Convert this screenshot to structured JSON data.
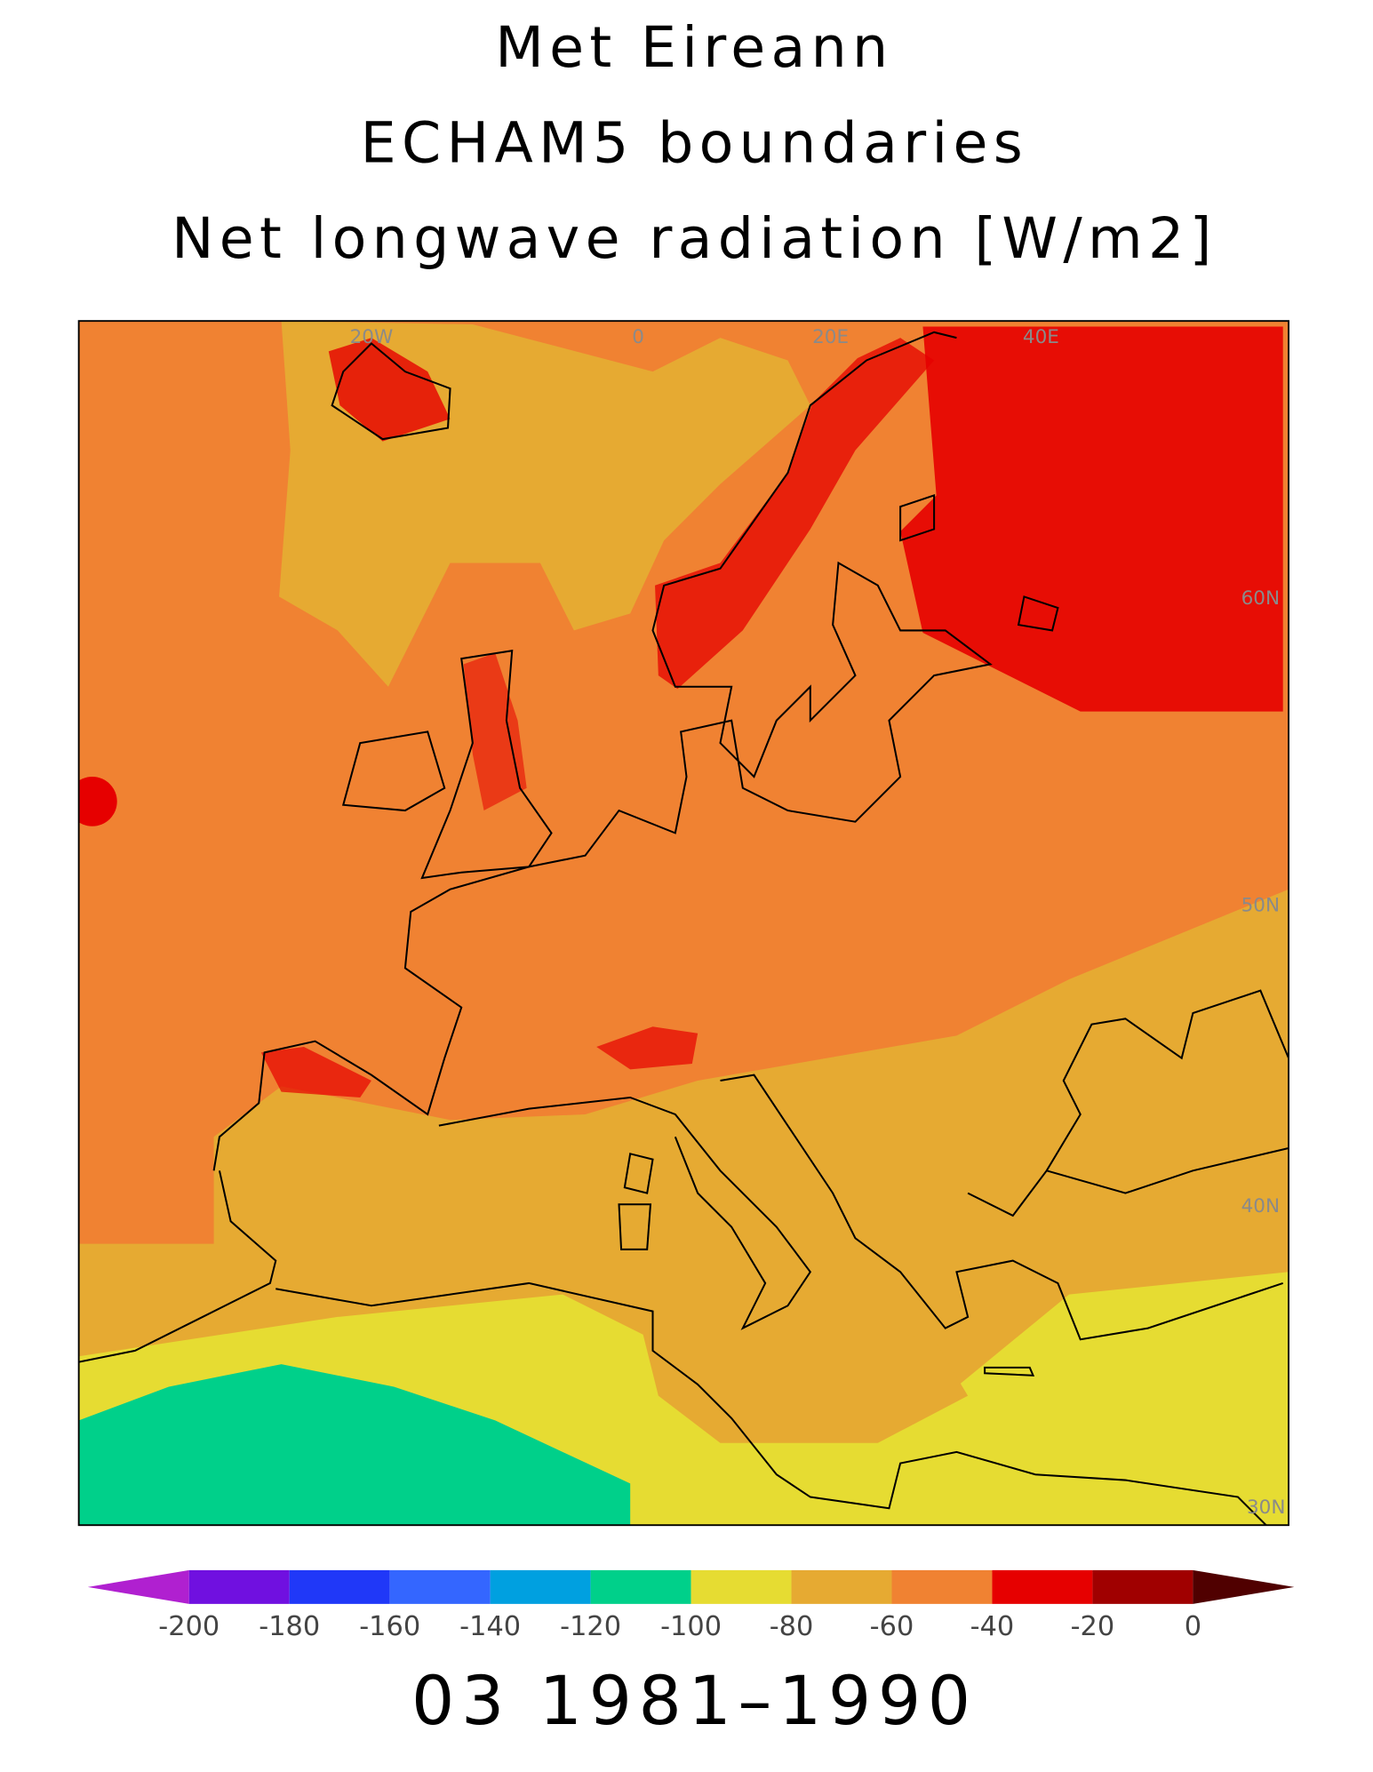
{
  "title": [
    "Met Eireann",
    "ECHAM5 boundaries",
    "Net longwave radiation [W/m2]"
  ],
  "map": {
    "grid_labels": [
      "20W",
      "0",
      "20E",
      "40E",
      "60N",
      "50N",
      "40N",
      "30N"
    ]
  },
  "colorbar": {
    "ticks": [
      -200,
      -180,
      -160,
      -140,
      -120,
      -100,
      -80,
      -60,
      -40,
      -20,
      0
    ],
    "colors": [
      "#b020d0",
      "#7010e0",
      "#2038f8",
      "#3466ff",
      "#00a0e0",
      "#00d08a",
      "#e6dc32",
      "#e6aa32",
      "#f08232",
      "#e60000",
      "#a00000",
      "#500000"
    ]
  },
  "footer": "03 1981–1990"
}
